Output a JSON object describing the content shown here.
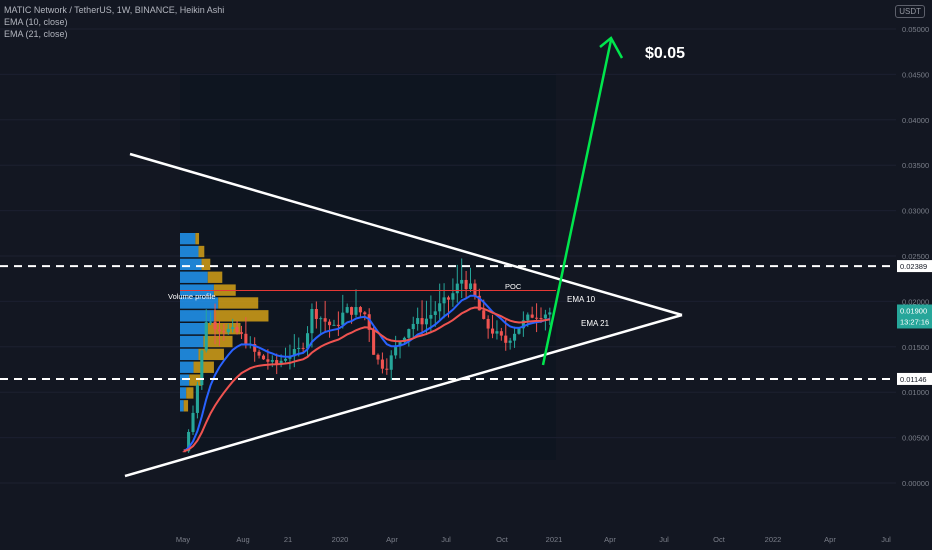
{
  "header": {
    "symbol_line": "MATIC Network / TetherUS, 1W, BINANCE, Heikin Ashi",
    "ema10_label": "EMA (10, close)",
    "ema21_label": "EMA (21, close)",
    "currency": "USDT"
  },
  "colors": {
    "background": "#131722",
    "up": "#26a69a",
    "down": "#ef5350",
    "ema10": "#2962ff",
    "ema21": "#ef5350",
    "vp_up": "#2196f3",
    "vp_down": "#d4a017",
    "poc": "#e53935",
    "annotation_white": "#ffffff",
    "arrow": "#00e64d",
    "price_tag": "#26a69a",
    "level_tag": "#ffffff"
  },
  "annotations": {
    "target_label": "$0.05",
    "volume_profile_label": "Volume profile",
    "poc_label": "POC",
    "ema10_text": "EMA 10",
    "ema21_text": "EMA 21"
  },
  "chart_data": {
    "type": "candlestick",
    "title": "MATIC Network / TetherUS, 1W, BINANCE, Heikin Ashi",
    "x_ticks": [
      "May",
      "Aug",
      "21",
      "2020",
      "Apr",
      "Jul",
      "Oct",
      "2021",
      "Apr",
      "Jul",
      "Oct",
      "2022",
      "Apr",
      "Jul"
    ],
    "y_ticks": [
      "0.00000",
      "0.00500",
      "0.01000",
      "0.01500",
      "0.02000",
      "0.02500",
      "0.03000",
      "0.03500",
      "0.04000",
      "0.04500",
      "0.05000"
    ],
    "ylim": [
      0,
      0.05
    ],
    "horizontal_levels": [
      {
        "value": 0.02389,
        "label": "0.02389"
      },
      {
        "value": 0.01146,
        "label": "0.01146"
      }
    ],
    "current_price": {
      "value": 0.019,
      "label": "0.01900",
      "countdown": "13:27:16"
    },
    "poc_level": 0.0212,
    "price_path": [
      {
        "t": 0.0,
        "p": 0.0035
      },
      {
        "t": 0.03,
        "p": 0.009
      },
      {
        "t": 0.06,
        "p": 0.018
      },
      {
        "t": 0.1,
        "p": 0.017
      },
      {
        "t": 0.15,
        "p": 0.0165
      },
      {
        "t": 0.2,
        "p": 0.014
      },
      {
        "t": 0.25,
        "p": 0.013
      },
      {
        "t": 0.28,
        "p": 0.014
      },
      {
        "t": 0.31,
        "p": 0.0145
      },
      {
        "t": 0.33,
        "p": 0.0155
      },
      {
        "t": 0.35,
        "p": 0.019
      },
      {
        "t": 0.38,
        "p": 0.018
      },
      {
        "t": 0.41,
        "p": 0.017
      },
      {
        "t": 0.44,
        "p": 0.019
      },
      {
        "t": 0.47,
        "p": 0.019
      },
      {
        "t": 0.5,
        "p": 0.0185
      },
      {
        "t": 0.52,
        "p": 0.014
      },
      {
        "t": 0.55,
        "p": 0.0125
      },
      {
        "t": 0.58,
        "p": 0.015
      },
      {
        "t": 0.62,
        "p": 0.0175
      },
      {
        "t": 0.66,
        "p": 0.018
      },
      {
        "t": 0.7,
        "p": 0.0195
      },
      {
        "t": 0.73,
        "p": 0.0205
      },
      {
        "t": 0.76,
        "p": 0.0225
      },
      {
        "t": 0.79,
        "p": 0.021
      },
      {
        "t": 0.82,
        "p": 0.0175
      },
      {
        "t": 0.85,
        "p": 0.0165
      },
      {
        "t": 0.88,
        "p": 0.0155
      },
      {
        "t": 0.91,
        "p": 0.017
      },
      {
        "t": 0.95,
        "p": 0.0185
      },
      {
        "t": 1.0,
        "p": 0.0188
      }
    ],
    "volume_profile": {
      "up": [
        0.25,
        0.3,
        0.35,
        0.45,
        0.55,
        0.62,
        0.55,
        0.45,
        0.38,
        0.3,
        0.22,
        0.15,
        0.1,
        0.06
      ],
      "down": [
        0.05,
        0.08,
        0.12,
        0.2,
        0.3,
        0.55,
        0.75,
        0.45,
        0.4,
        0.35,
        0.28,
        0.18,
        0.1,
        0.06
      ]
    }
  }
}
